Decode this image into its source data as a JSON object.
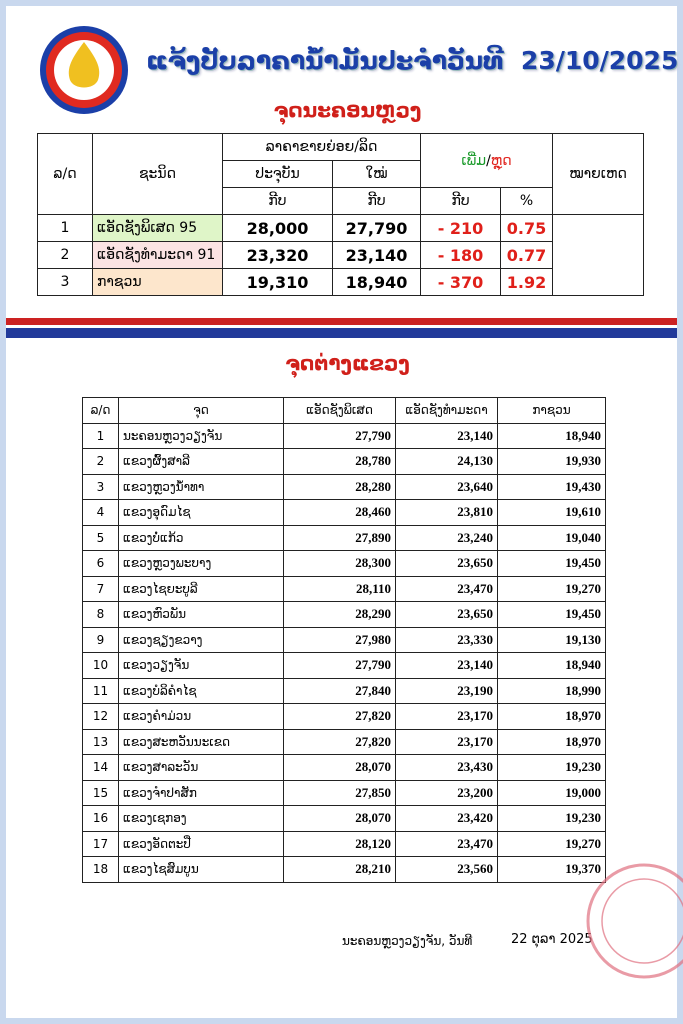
{
  "header": {
    "title": "ແຈ້ງປັບລາຄານ້ຳມັນປະຈຳວັນທີ",
    "date": "23/10/2025",
    "subtitle": "ຈຸດນະຄອນຫຼວງ"
  },
  "capital_table": {
    "headers": {
      "no": "ລ/ດ",
      "type": "ຊະນິດ",
      "retail_price": "ລາຄາຂາຍຍ່ອຍ/ລິດ",
      "current": "ປະຈຸບັນ",
      "new": "ໃໝ່",
      "unit_current": "ກີບ",
      "unit_new": "ກີບ",
      "change_up": "ເພີ່ມ",
      "change_sep": "/",
      "change_down": "ຫຼຸດ",
      "unit_change": "ກີບ",
      "percent": "%",
      "remarks": "ໝາຍເຫດ"
    },
    "rows": [
      [
        "1",
        "ແອັດຊັງພິເສດ  95",
        "28,000",
        "27,790",
        "- 210",
        "0.75"
      ],
      [
        "2",
        "ແອັດຊັງທຳມະດາ 91",
        "23,320",
        "23,140",
        "- 180",
        "0.77"
      ],
      [
        "3",
        "ກາຊວນ",
        "19,310",
        "18,940",
        "- 370",
        "1.92"
      ]
    ]
  },
  "province_section": {
    "title": "ຈຸດຕ່າງແຂວງ"
  },
  "province_table": {
    "headers": [
      "ລ/ດ",
      "ຈຸດ",
      "ແອັດຊັງພິເສດ",
      "ແອັດຊັງທຳມະດາ",
      "ກາຊວນ"
    ],
    "rows": [
      [
        "1",
        "ນະຄອນຫຼວງວຽງຈັນ",
        "27,790",
        "23,140",
        "18,940"
      ],
      [
        "2",
        "ແຂວງຜົ້ງສາລີ",
        "28,780",
        "24,130",
        "19,930"
      ],
      [
        "3",
        "ແຂວງຫຼວງນ້ຳທາ",
        "28,280",
        "23,640",
        "19,430"
      ],
      [
        "4",
        "ແຂວງອຸດົມໄຊ",
        "28,460",
        "23,810",
        "19,610"
      ],
      [
        "5",
        "ແຂວງບໍ່ແກ້ວ",
        "27,890",
        "23,240",
        "19,040"
      ],
      [
        "6",
        "ແຂວງຫຼວງພະບາງ",
        "28,300",
        "23,650",
        "19,450"
      ],
      [
        "7",
        "ແຂວງໄຊຍະບູລີ",
        "28,110",
        "23,470",
        "19,270"
      ],
      [
        "8",
        "ແຂວງຫົວພັນ",
        "28,290",
        "23,650",
        "19,450"
      ],
      [
        "9",
        "ແຂວງຊຽງຂວາງ",
        "27,980",
        "23,330",
        "19,130"
      ],
      [
        "10",
        "ແຂວງວຽງຈັນ",
        "27,790",
        "23,140",
        "18,940"
      ],
      [
        "11",
        "ແຂວງບໍລິຄຳໄຊ",
        "27,840",
        "23,190",
        "18,990"
      ],
      [
        "12",
        "ແຂວງຄຳມ່ວນ",
        "27,820",
        "23,170",
        "18,970"
      ],
      [
        "13",
        "ແຂວງສະຫວັນນະເຂດ",
        "27,820",
        "23,170",
        "18,970"
      ],
      [
        "14",
        "ແຂວງສາລະວັນ",
        "28,070",
        "23,430",
        "19,230"
      ],
      [
        "15",
        "ແຂວງຈຳປາສັກ",
        "27,850",
        "23,200",
        "19,000"
      ],
      [
        "16",
        "ແຂວງເຊກອງ",
        "28,070",
        "23,420",
        "19,230"
      ],
      [
        "17",
        "ແຂວງອັດຕະປື",
        "28,120",
        "23,470",
        "19,270"
      ],
      [
        "18",
        "ແຂວງໄຊສົມບູນ",
        "28,210",
        "23,560",
        "19,370"
      ]
    ]
  },
  "footer": {
    "place": "ນະຄອນຫຼວງວຽງຈັນ, ວັນທີ",
    "date": "22 ຕຸລາ 2025"
  }
}
